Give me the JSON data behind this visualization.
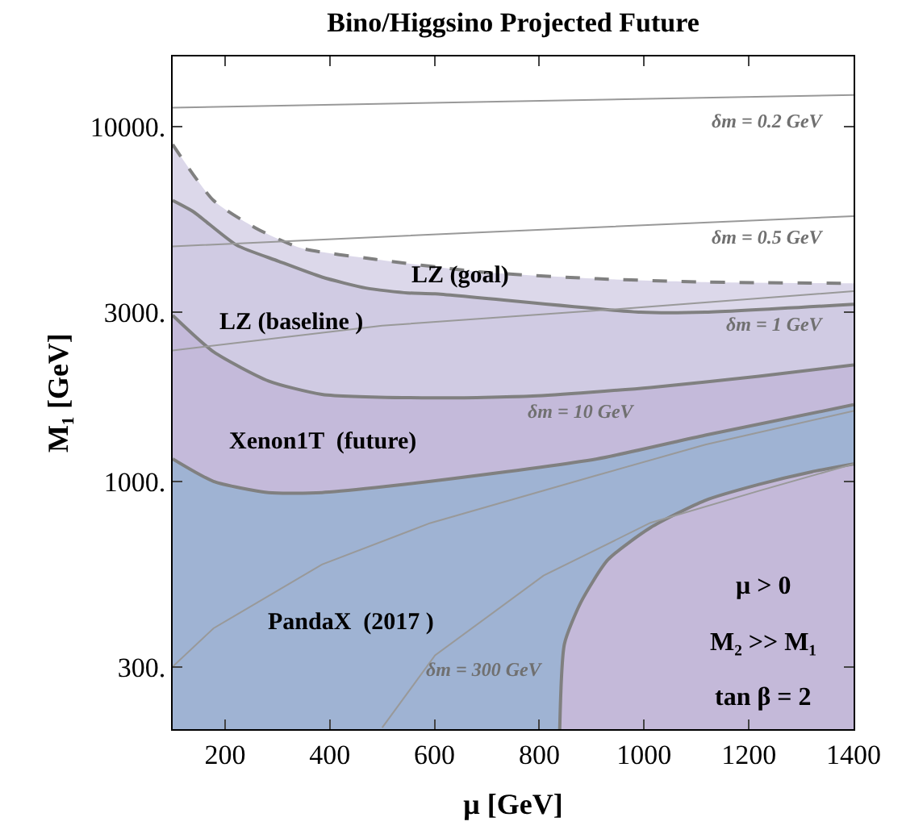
{
  "chart_data": {
    "type": "area",
    "title": "Bino/Higgsino Projected Future",
    "xlabel": "μ [GeV]",
    "ylabel": "M₁ [GeV]",
    "xlim": [
      100,
      1400
    ],
    "xticks": [
      200,
      400,
      600,
      800,
      1000,
      1200,
      1400
    ],
    "ylim": [
      200,
      15800
    ],
    "yticks": [
      {
        "value": 300,
        "label": "300."
      },
      {
        "value": 1000,
        "label": "1000."
      },
      {
        "value": 3000,
        "label": "3000."
      },
      {
        "value": 10000,
        "label": "10000."
      }
    ],
    "log": "y",
    "series": [
      {
        "color": "#dcd8ea",
        "line_style": "dashed",
        "x": [
          100,
          178,
          262,
          345,
          487,
          694,
          910,
          1117,
          1400
        ],
        "values": [
          8920,
          6200,
          5150,
          4550,
          4230,
          3890,
          3730,
          3650,
          3620
        ]
      },
      {
        "color": "#d0cbe3",
        "line_style": "solid",
        "x": [
          100,
          139,
          222,
          302,
          385,
          469,
          549,
          601,
          993,
          1117,
          1400
        ],
        "values": [
          6200,
          5770,
          4640,
          4180,
          3770,
          3510,
          3400,
          3380,
          3000,
          3000,
          3160
        ]
      },
      {
        "color": "#c4bada",
        "line_style": "solid",
        "x": [
          100,
          178,
          283,
          385,
          601,
          787,
          1012,
          1219,
          1400
        ],
        "values": [
          2940,
          2320,
          1920,
          1760,
          1720,
          1740,
          1840,
          1980,
          2130
        ]
      },
      {
        "color": "#9fb3d3",
        "line_style": "solid",
        "x": [
          100,
          178,
          283,
          385,
          487,
          592,
          910,
          1117,
          1400
        ],
        "values": [
          1157,
          1000,
          930,
          930,
          960,
          1000,
          1157,
          1350,
          1645
        ]
      },
      {
        "color": "#c4b9d9",
        "line_style": "solid",
        "x": [
          839,
          848,
          879,
          931,
          1012,
          1116,
          1219,
          1320,
          1400
        ],
        "values": [
          200,
          348,
          455,
          601,
          740,
          883,
          980,
          1064,
          1120
        ]
      },
      {
        "type": "line",
        "color": "#999999",
        "x": [
          100,
          1400
        ],
        "values": [
          11330,
          12300
        ]
      },
      {
        "type": "line",
        "color": "#999999",
        "x": [
          100,
          700,
          1400
        ],
        "values": [
          4600,
          5050,
          5600
        ]
      },
      {
        "type": "line",
        "color": "#999999",
        "x": [
          100,
          500,
          1000,
          1400
        ],
        "values": [
          2340,
          2750,
          3100,
          3440
        ]
      },
      {
        "type": "line",
        "color": "#999999",
        "x": [
          100,
          178,
          385,
          592,
          910,
          1117,
          1400
        ],
        "values": [
          300,
          385,
          583,
          763,
          1040,
          1270,
          1580
        ]
      },
      {
        "type": "line",
        "color": "#999999",
        "x": [
          500,
          601,
          808,
          1012,
          1219,
          1400
        ],
        "values": [
          202,
          323,
          542,
          764,
          940,
          1120
        ]
      }
    ],
    "annotations": [
      "LZ (goal)",
      "LZ (baseline )",
      "Xenon1T  (future)",
      "PandaX  (2017 )",
      "δm = 0.2 GeV",
      "δm = 0.5 GeV",
      "δm = 1 GeV",
      "δm = 10 GeV",
      "δm = 300 GeV",
      "μ > 0",
      "M₂ >> M₁",
      "tan β = 2"
    ]
  }
}
